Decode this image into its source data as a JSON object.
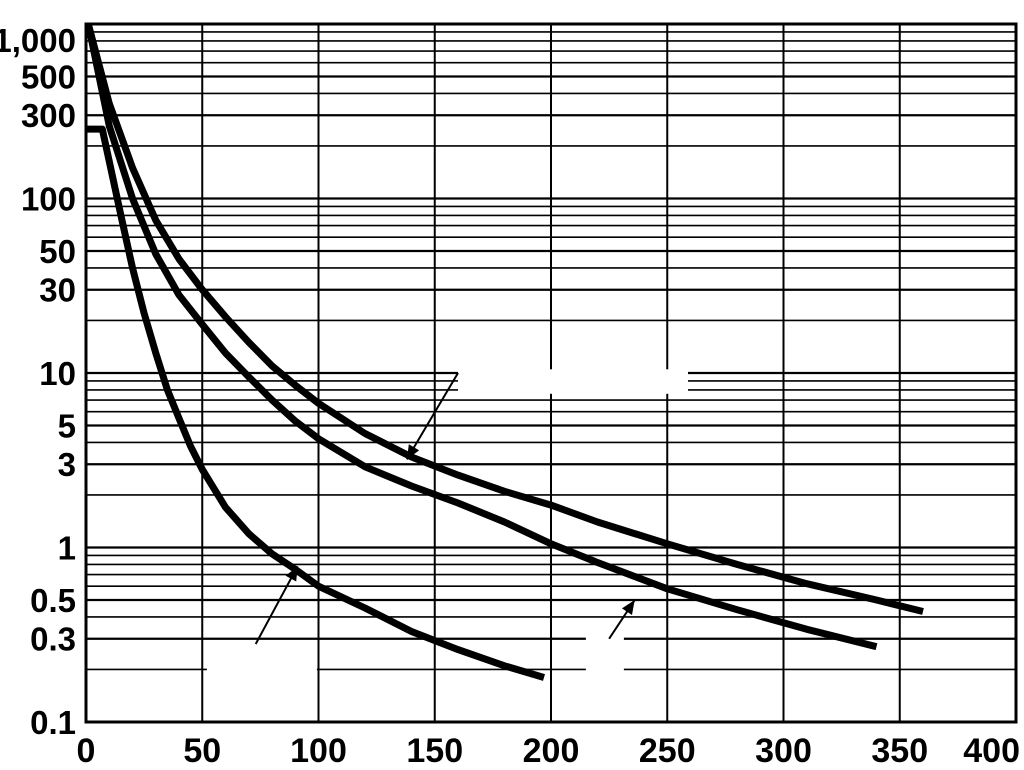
{
  "chart_data": {
    "type": "line",
    "title": "",
    "xlabel": "",
    "ylabel": "",
    "xlim": [
      0,
      400
    ],
    "ylim": [
      0.1,
      1000
    ],
    "yscale": "log",
    "grid": true,
    "x_ticks": [
      {
        "value": 0,
        "label": "0"
      },
      {
        "value": 50,
        "label": "50"
      },
      {
        "value": 100,
        "label": "100"
      },
      {
        "value": 150,
        "label": "150"
      },
      {
        "value": 200,
        "label": "200"
      },
      {
        "value": 250,
        "label": "250"
      },
      {
        "value": 300,
        "label": "300"
      },
      {
        "value": 350,
        "label": "350"
      },
      {
        "value": 400,
        "label": "400"
      }
    ],
    "y_ticks": [
      {
        "value": 1000,
        "label": "1,000"
      },
      {
        "value": 500,
        "label": "500"
      },
      {
        "value": 300,
        "label": "300"
      },
      {
        "value": 100,
        "label": "100"
      },
      {
        "value": 50,
        "label": "50"
      },
      {
        "value": 30,
        "label": "30"
      },
      {
        "value": 10,
        "label": "10"
      },
      {
        "value": 5,
        "label": "5"
      },
      {
        "value": 3,
        "label": "3"
      },
      {
        "value": 1,
        "label": "1"
      },
      {
        "value": 0.5,
        "label": "0.5"
      },
      {
        "value": 0.3,
        "label": "0.3"
      },
      {
        "value": 0.1,
        "label": "0.1"
      }
    ],
    "series": [
      {
        "points": [
          [
            1,
            1000
          ],
          [
            10,
            350
          ],
          [
            20,
            150
          ],
          [
            30,
            75
          ],
          [
            40,
            45
          ],
          [
            50,
            30
          ],
          [
            60,
            21
          ],
          [
            70,
            15
          ],
          [
            80,
            11
          ],
          [
            90,
            8.5
          ],
          [
            100,
            6.7
          ],
          [
            120,
            4.5
          ],
          [
            140,
            3.3
          ],
          [
            160,
            2.6
          ],
          [
            180,
            2.1
          ],
          [
            200,
            1.75
          ],
          [
            220,
            1.4
          ],
          [
            250,
            1.05
          ],
          [
            280,
            0.8
          ],
          [
            310,
            0.62
          ],
          [
            340,
            0.5
          ],
          [
            360,
            0.43
          ]
        ]
      },
      {
        "points": [
          [
            1,
            1000
          ],
          [
            10,
            260
          ],
          [
            20,
            100
          ],
          [
            30,
            48
          ],
          [
            40,
            28
          ],
          [
            50,
            19
          ],
          [
            60,
            13
          ],
          [
            70,
            9.5
          ],
          [
            80,
            7
          ],
          [
            90,
            5.3
          ],
          [
            100,
            4.2
          ],
          [
            120,
            2.9
          ],
          [
            140,
            2.25
          ],
          [
            160,
            1.8
          ],
          [
            180,
            1.4
          ],
          [
            200,
            1.05
          ],
          [
            220,
            0.82
          ],
          [
            250,
            0.58
          ],
          [
            280,
            0.44
          ],
          [
            310,
            0.34
          ],
          [
            340,
            0.27
          ]
        ]
      },
      {
        "points": [
          [
            0,
            250
          ],
          [
            7,
            250
          ],
          [
            15,
            80
          ],
          [
            20,
            40
          ],
          [
            25,
            22
          ],
          [
            30,
            13
          ],
          [
            35,
            8
          ],
          [
            40,
            5.5
          ],
          [
            45,
            3.8
          ],
          [
            50,
            2.8
          ],
          [
            60,
            1.7
          ],
          [
            70,
            1.2
          ],
          [
            80,
            0.92
          ],
          [
            90,
            0.75
          ],
          [
            100,
            0.6
          ],
          [
            120,
            0.45
          ],
          [
            140,
            0.33
          ],
          [
            160,
            0.26
          ],
          [
            180,
            0.21
          ],
          [
            197,
            0.18
          ]
        ]
      }
    ],
    "annotations": [
      {
        "from": [
          160,
          10
        ],
        "to": [
          138,
          3.2
        ]
      },
      {
        "from": [
          73,
          0.28
        ],
        "to": [
          91,
          0.78
        ]
      },
      {
        "from": [
          225,
          0.3
        ],
        "to": [
          236,
          0.5
        ]
      }
    ]
  }
}
